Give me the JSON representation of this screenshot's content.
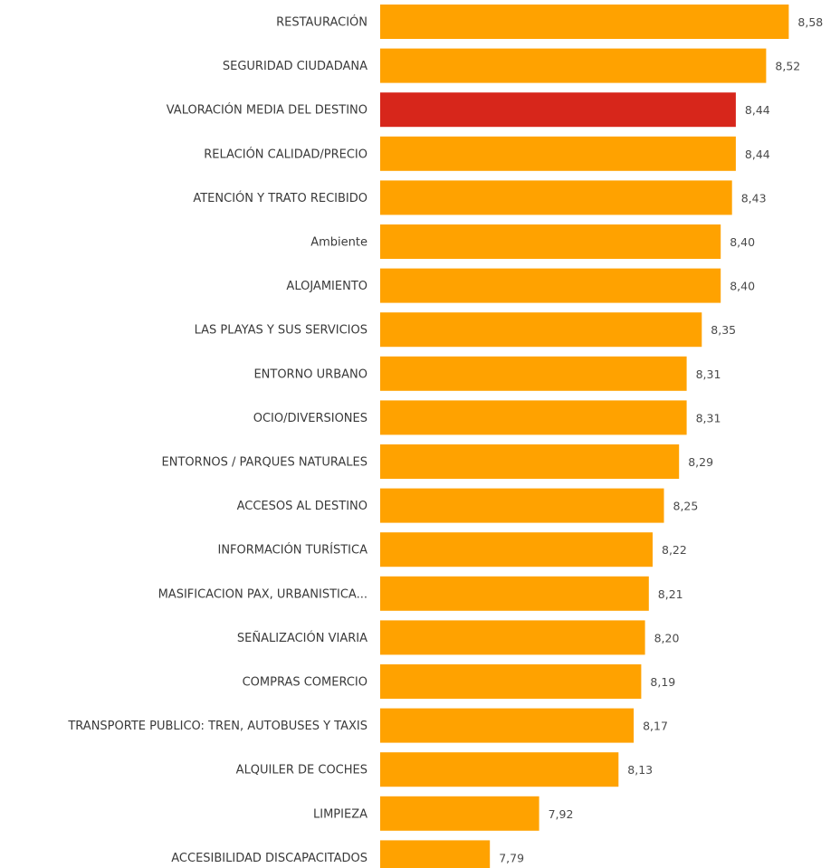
{
  "chart_data": {
    "type": "bar",
    "orientation": "horizontal",
    "categories": [
      "RESTAURACIÓN",
      "SEGURIDAD CIUDADANA",
      "VALORACIÓN MEDIA DEL DESTINO",
      "RELACIÓN CALIDAD/PRECIO",
      "ATENCIÓN Y TRATO RECIBIDO",
      "Ambiente",
      "ALOJAMIENTO",
      "LAS PLAYAS Y SUS SERVICIOS",
      "ENTORNO URBANO",
      "OCIO/DIVERSIONES",
      "ENTORNOS / PARQUES NATURALES",
      "ACCESOS AL DESTINO",
      "INFORMACIÓN TURÍSTICA",
      "MASIFICACION PAX, URBANISTICA...",
      "SEÑALIZACIÓN VIARIA",
      "COMPRAS COMERCIO",
      "TRANSPORTE PUBLICO: TREN, AUTOBUSES Y TAXIS",
      "ALQUILER DE COCHES",
      "LIMPIEZA",
      "ACCESIBILIDAD DISCAPACITADOS"
    ],
    "values": [
      8.58,
      8.52,
      8.44,
      8.44,
      8.43,
      8.4,
      8.4,
      8.35,
      8.31,
      8.31,
      8.29,
      8.25,
      8.22,
      8.21,
      8.2,
      8.19,
      8.17,
      8.13,
      7.92,
      7.79
    ],
    "value_labels": [
      "8,58",
      "8,52",
      "8,44",
      "8,44",
      "8,43",
      "8,40",
      "8,40",
      "8,35",
      "8,31",
      "8,31",
      "8,29",
      "8,25",
      "8,22",
      "8,21",
      "8,20",
      "8,19",
      "8,17",
      "8,13",
      "7,92",
      "7,79"
    ],
    "highlight_index": 2,
    "xlim": [
      7.5,
      8.6
    ],
    "colors": {
      "bar": "#ffa200",
      "highlight": "#d7261b",
      "label": "#3a3a3a",
      "background": "#ffffff"
    },
    "grid": false,
    "legend": false
  }
}
